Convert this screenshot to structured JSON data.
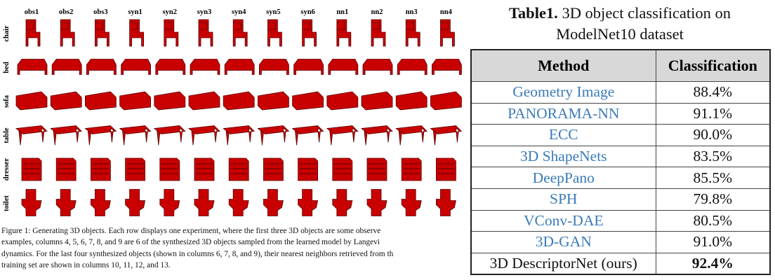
{
  "figure": {
    "columns": [
      "obs1",
      "obs2",
      "obs3",
      "syn1",
      "syn2",
      "syn3",
      "syn4",
      "syn5",
      "syn6",
      "nn1",
      "nn2",
      "nn3",
      "nn4"
    ],
    "rows": [
      "chair",
      "bed",
      "sofa",
      "table",
      "dresser",
      "toilet"
    ],
    "object_color": "#c80000",
    "caption_lines": [
      "Figure 1: Generating 3D objects. Each row displays one experiment, where the first three 3D objects are some observe",
      "examples, columns 4, 5, 6, 7, 8, and 9 are 6 of the synthesized 3D objects sampled from the learned model by Langevi",
      "dynamics. For the last four synthesized objects (shown in columns 6, 7, 8, and 9), their nearest neighbors retrieved from th",
      "training set are shown in columns 10, 11, 12, and 13."
    ]
  },
  "table": {
    "title_lead": "Table1.",
    "title_rest": " 3D object classification on",
    "title_line2": "ModelNet10 dataset",
    "headers": [
      "Method",
      "Classification"
    ],
    "rows": [
      {
        "method": "Geometry Image",
        "value": "88.4%"
      },
      {
        "method": "PANORAMA-NN",
        "value": "91.1%"
      },
      {
        "method": "ECC",
        "value": "90.0%"
      },
      {
        "method": "3D ShapeNets",
        "value": "83.5%"
      },
      {
        "method": "DeepPano",
        "value": "85.5%"
      },
      {
        "method": "SPH",
        "value": "79.8%"
      },
      {
        "method": "VConv-DAE",
        "value": "80.5%"
      },
      {
        "method": "3D-GAN",
        "value": "91.0%"
      },
      {
        "method": "3D DescriptorNet (ours)",
        "value": "92.4%"
      }
    ],
    "link_color": "#3a7bb8"
  }
}
